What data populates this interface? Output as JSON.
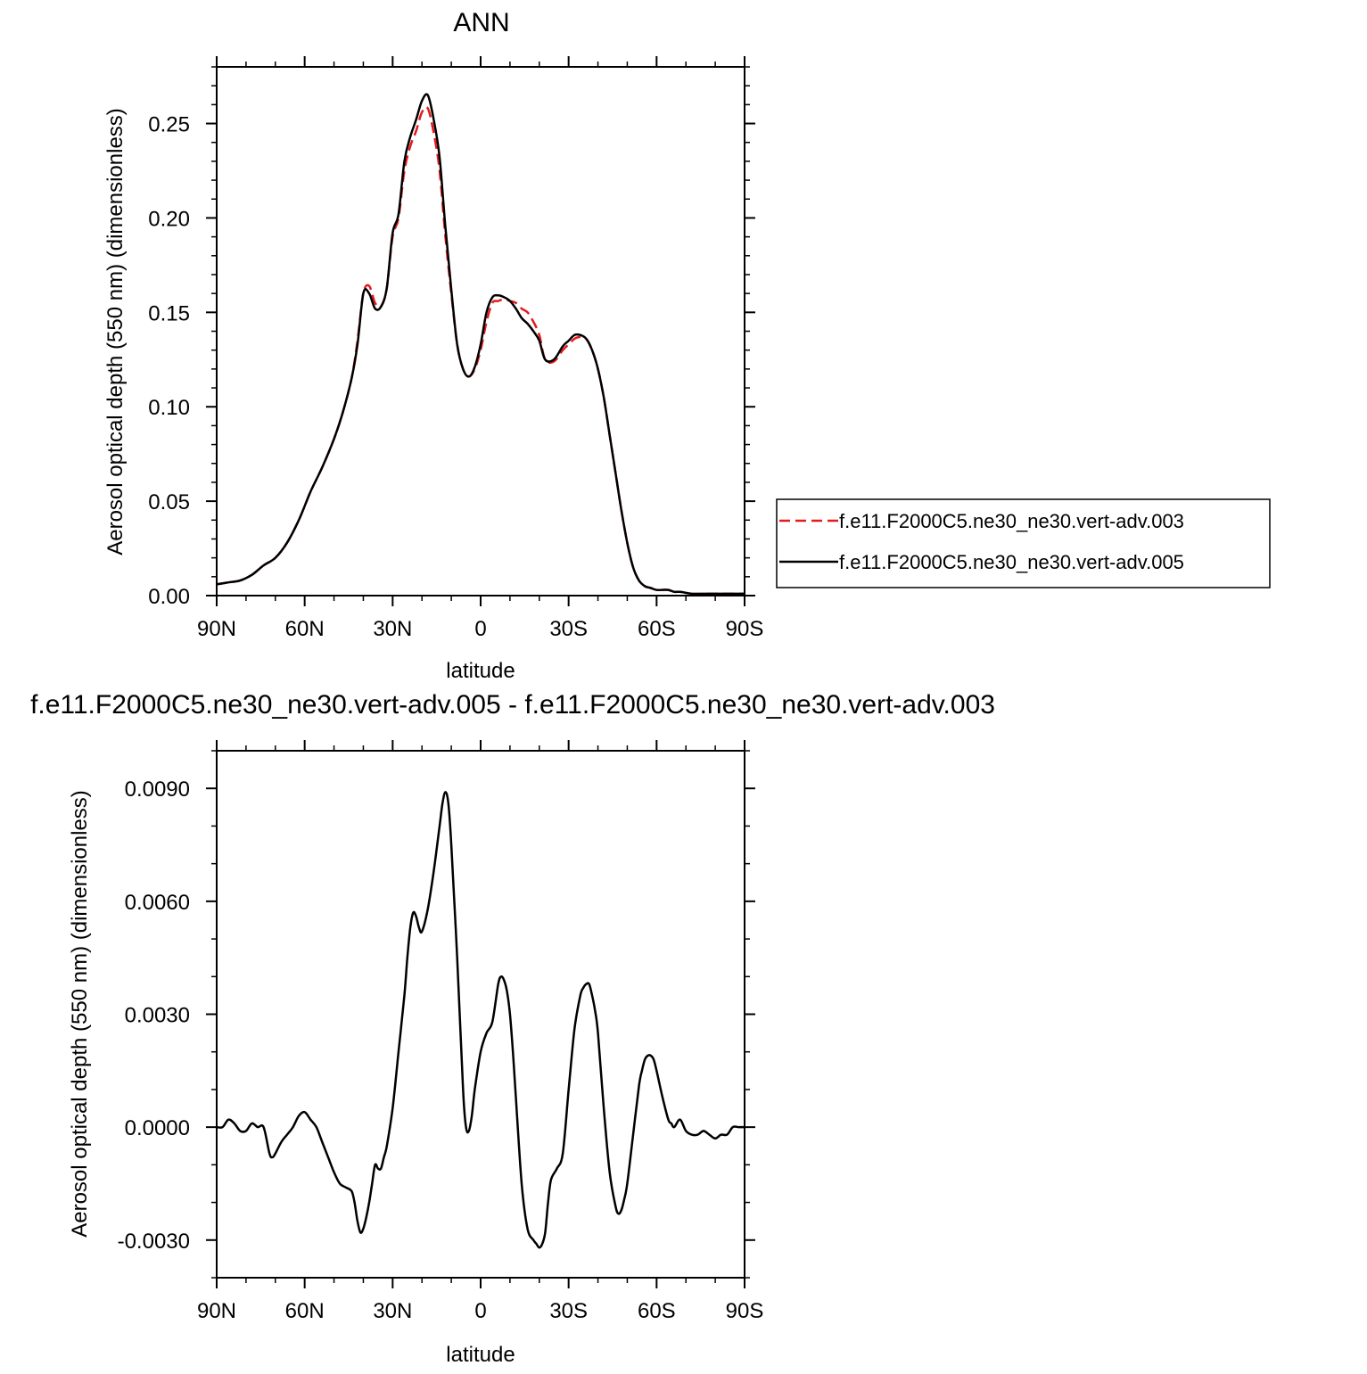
{
  "chart_data": [
    {
      "type": "line",
      "title": "ANN",
      "xlabel": "latitude",
      "ylabel": "Aerosol optical depth (550 nm) (dimensionless)",
      "xlim": [
        90,
        -90
      ],
      "ylim": [
        0.0,
        0.28
      ],
      "x_ticks": [
        90,
        60,
        30,
        0,
        -30,
        -60,
        -90
      ],
      "x_tick_labels": [
        "90N",
        "60N",
        "30N",
        "0",
        "30S",
        "60S",
        "90S"
      ],
      "y_ticks": [
        0.0,
        0.05,
        0.1,
        0.15,
        0.2,
        0.25
      ],
      "y_tick_labels": [
        "0.00",
        "0.05",
        "0.10",
        "0.15",
        "0.20",
        "0.25"
      ],
      "legend": {
        "placement": "right"
      },
      "series": [
        {
          "name": "f.e11.F2000C5.ne30_ne30.vert-adv.003",
          "color": "#e41a1c",
          "dash": "dashed",
          "x": [
            90,
            86,
            82,
            78,
            74,
            70,
            66,
            62,
            58,
            54,
            50,
            47,
            44,
            42,
            40,
            38,
            36,
            34,
            32,
            30,
            28,
            26,
            24,
            22,
            20,
            18,
            16,
            14,
            12,
            10,
            8,
            6,
            4,
            2,
            0,
            -2,
            -4,
            -6,
            -8,
            -10,
            -12,
            -14,
            -16,
            -18,
            -20,
            -22,
            -25,
            -28,
            -30,
            -32,
            -34,
            -36,
            -38,
            -40,
            -42,
            -44,
            -46,
            -48,
            -50,
            -52,
            -54,
            -56,
            -58,
            -60,
            -62,
            -64,
            -66,
            -68,
            -72,
            -76,
            -80,
            -84,
            -88,
            -90
          ],
          "y": [
            0.006,
            0.007,
            0.008,
            0.011,
            0.016,
            0.02,
            0.028,
            0.04,
            0.055,
            0.068,
            0.083,
            0.097,
            0.115,
            0.135,
            0.16,
            0.164,
            0.155,
            0.153,
            0.163,
            0.19,
            0.2,
            0.225,
            0.238,
            0.246,
            0.256,
            0.258,
            0.245,
            0.225,
            0.19,
            0.16,
            0.133,
            0.12,
            0.116,
            0.12,
            0.13,
            0.145,
            0.155,
            0.156,
            0.157,
            0.156,
            0.155,
            0.152,
            0.15,
            0.145,
            0.138,
            0.125,
            0.124,
            0.13,
            0.133,
            0.136,
            0.137,
            0.136,
            0.13,
            0.12,
            0.105,
            0.085,
            0.065,
            0.045,
            0.028,
            0.015,
            0.008,
            0.005,
            0.004,
            0.003,
            0.003,
            0.003,
            0.002,
            0.002,
            0.001,
            0.001,
            0.001,
            0.001,
            0.001,
            0.001
          ]
        },
        {
          "name": "f.e11.F2000C5.ne30_ne30.vert-adv.005",
          "color": "#000000",
          "dash": "solid",
          "x": [
            90,
            86,
            82,
            78,
            74,
            70,
            66,
            62,
            58,
            54,
            50,
            47,
            44,
            42,
            40,
            38,
            36,
            34,
            32,
            30,
            28,
            26,
            24,
            22,
            20,
            18,
            16,
            14,
            12,
            10,
            8,
            6,
            4,
            2,
            0,
            -2,
            -4,
            -6,
            -8,
            -10,
            -12,
            -14,
            -16,
            -18,
            -20,
            -22,
            -25,
            -28,
            -30,
            -32,
            -34,
            -36,
            -38,
            -40,
            -42,
            -44,
            -46,
            -48,
            -50,
            -52,
            -54,
            -56,
            -58,
            -60,
            -62,
            -64,
            -66,
            -68,
            -72,
            -76,
            -80,
            -84,
            -88,
            -90
          ],
          "y": [
            0.006,
            0.007,
            0.008,
            0.011,
            0.016,
            0.02,
            0.028,
            0.04,
            0.055,
            0.068,
            0.083,
            0.097,
            0.115,
            0.133,
            0.16,
            0.16,
            0.152,
            0.153,
            0.163,
            0.192,
            0.202,
            0.23,
            0.243,
            0.252,
            0.262,
            0.265,
            0.252,
            0.232,
            0.195,
            0.162,
            0.133,
            0.12,
            0.116,
            0.121,
            0.133,
            0.15,
            0.158,
            0.159,
            0.158,
            0.156,
            0.152,
            0.147,
            0.144,
            0.14,
            0.135,
            0.125,
            0.125,
            0.132,
            0.135,
            0.138,
            0.138,
            0.136,
            0.13,
            0.12,
            0.105,
            0.085,
            0.065,
            0.045,
            0.028,
            0.015,
            0.008,
            0.005,
            0.004,
            0.003,
            0.003,
            0.003,
            0.002,
            0.002,
            0.001,
            0.001,
            0.001,
            0.001,
            0.001,
            0.001
          ]
        }
      ]
    },
    {
      "type": "line",
      "title": "f.e11.F2000C5.ne30_ne30.vert-adv.005 - f.e11.F2000C5.ne30_ne30.vert-adv.003",
      "xlabel": "latitude",
      "ylabel": "Aerosol optical depth (550 nm) (dimensionless)",
      "xlim": [
        90,
        -90
      ],
      "ylim": [
        -0.004,
        0.01
      ],
      "x_ticks": [
        90,
        60,
        30,
        0,
        -30,
        -60,
        -90
      ],
      "x_tick_labels": [
        "90N",
        "60N",
        "30N",
        "0",
        "30S",
        "60S",
        "90S"
      ],
      "y_ticks": [
        -0.003,
        0.0,
        0.003,
        0.006,
        0.009
      ],
      "y_tick_labels": [
        "-0.0030",
        "0.0000",
        "0.0030",
        "0.0060",
        "0.0090"
      ],
      "series": [
        {
          "color": "#000000",
          "dash": "solid",
          "x": [
            90,
            88,
            86,
            84,
            82,
            80,
            78,
            76,
            74,
            72,
            71,
            70,
            68,
            66,
            64,
            62,
            60,
            58,
            56,
            54,
            52,
            50,
            48,
            46,
            44,
            43,
            42,
            41,
            40,
            39,
            38,
            37,
            36,
            35,
            34,
            33,
            32,
            30,
            28,
            26,
            25,
            24,
            23,
            22,
            21,
            20,
            18,
            16,
            14,
            13,
            12,
            11,
            10,
            8,
            6,
            5,
            4,
            3,
            2,
            0,
            -2,
            -4,
            -6,
            -7,
            -8,
            -9,
            -10,
            -11,
            -12,
            -14,
            -16,
            -18,
            -19,
            -20,
            -21,
            -22,
            -23,
            -24,
            -26,
            -28,
            -30,
            -32,
            -34,
            -35,
            -36,
            -37,
            -38,
            -39,
            -40,
            -42,
            -44,
            -46,
            -47,
            -48,
            -49,
            -50,
            -52,
            -54,
            -55,
            -56,
            -57,
            -58,
            -59,
            -60,
            -62,
            -64,
            -65,
            -66,
            -68,
            -70,
            -72,
            -74,
            -76,
            -78,
            -80,
            -82,
            -84,
            -86,
            -88,
            -90
          ],
          "y": [
            0.0,
            0.0,
            0.0002,
            0.0001,
            -0.0001,
            -0.0001,
            0.0001,
            0.0,
            0.0,
            -0.0007,
            -0.0008,
            -0.0007,
            -0.0004,
            -0.0002,
            0.0,
            0.0003,
            0.0004,
            0.0002,
            0.0,
            -0.0004,
            -0.0008,
            -0.0012,
            -0.0015,
            -0.0016,
            -0.0017,
            -0.002,
            -0.0025,
            -0.0028,
            -0.0027,
            -0.0024,
            -0.002,
            -0.0015,
            -0.001,
            -0.0011,
            -0.0011,
            -0.0008,
            -0.0005,
            0.0005,
            0.002,
            0.0035,
            0.0045,
            0.0053,
            0.0057,
            0.0056,
            0.0053,
            0.0052,
            0.0058,
            0.0068,
            0.008,
            0.0086,
            0.0089,
            0.0086,
            0.0075,
            0.0045,
            0.001,
            0.0,
            -0.0001,
            0.0003,
            0.001,
            0.002,
            0.0025,
            0.0028,
            0.0038,
            0.004,
            0.0039,
            0.0036,
            0.003,
            0.002,
            0.0008,
            -0.0015,
            -0.0027,
            -0.003,
            -0.0031,
            -0.0032,
            -0.0031,
            -0.0028,
            -0.002,
            -0.0014,
            -0.0011,
            -0.0007,
            0.001,
            0.0026,
            0.0035,
            0.0037,
            0.0038,
            0.0038,
            0.0035,
            0.0031,
            0.0025,
            0.0005,
            -0.0012,
            -0.0021,
            -0.0023,
            -0.0022,
            -0.0019,
            -0.0015,
            -0.0002,
            0.0011,
            0.0015,
            0.0018,
            0.0019,
            0.0019,
            0.0018,
            0.0015,
            0.0008,
            0.0002,
            0.0001,
            0.0,
            0.0002,
            -0.0001,
            -0.0002,
            -0.0002,
            -0.0001,
            -0.0002,
            -0.0003,
            -0.0002,
            -0.0002,
            0.0,
            0.0,
            0.0
          ]
        }
      ]
    }
  ]
}
